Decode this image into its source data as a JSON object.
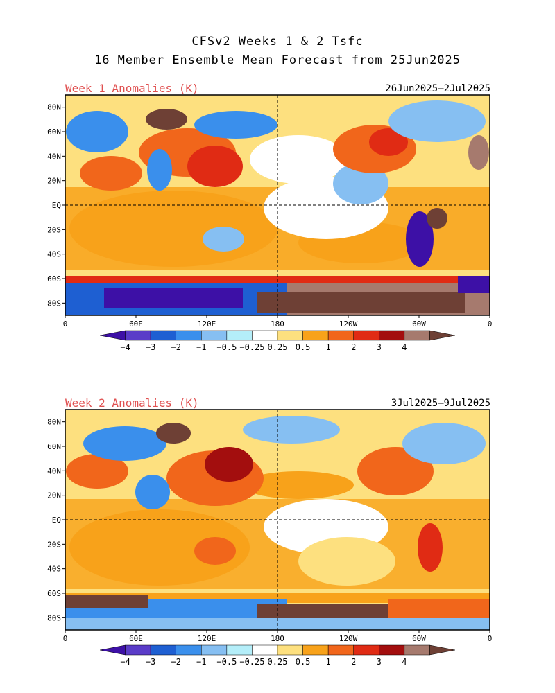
{
  "title": {
    "line1": "CFSv2 Weeks 1 & 2 Tsfc",
    "line2": "16 Member Ensemble Mean Forecast from 25Jun2025"
  },
  "panels": [
    {
      "label": "Week 1 Anomalies (K)",
      "date_range": "26Jun2025—2Jul2025"
    },
    {
      "label": "Week 2 Anomalies (K)",
      "date_range": "3Jul2025—9Jul2025"
    }
  ],
  "axes": {
    "lat_labels": [
      "80N",
      "60N",
      "40N",
      "20N",
      "EQ",
      "20S",
      "40S",
      "60S",
      "80S"
    ],
    "lat_values": [
      80,
      60,
      40,
      20,
      0,
      -20,
      -40,
      -60,
      -80
    ],
    "lon_labels": [
      "0",
      "60E",
      "120E",
      "180",
      "120W",
      "60W",
      "0"
    ],
    "lon_values": [
      0,
      60,
      120,
      180,
      240,
      300,
      360
    ]
  },
  "colorbar": {
    "tick_labels": [
      "−4",
      "−3",
      "−2",
      "−1",
      "−0.5",
      "−0.25",
      "0.25",
      "0.5",
      "1",
      "2",
      "3",
      "4"
    ],
    "colors": [
      "#3d10a6",
      "#5a3cc8",
      "#1e5fd2",
      "#3a8fec",
      "#86bff2",
      "#b4eef9",
      "#ffffff",
      "#fde07f",
      "#f8a21a",
      "#f1661b",
      "#e02b14",
      "#a30e0e",
      "#a67a6e",
      "#6e4035"
    ]
  },
  "legend_note": "temperature anomaly shading, warm = orange/red/brown, cold = blue/purple"
}
